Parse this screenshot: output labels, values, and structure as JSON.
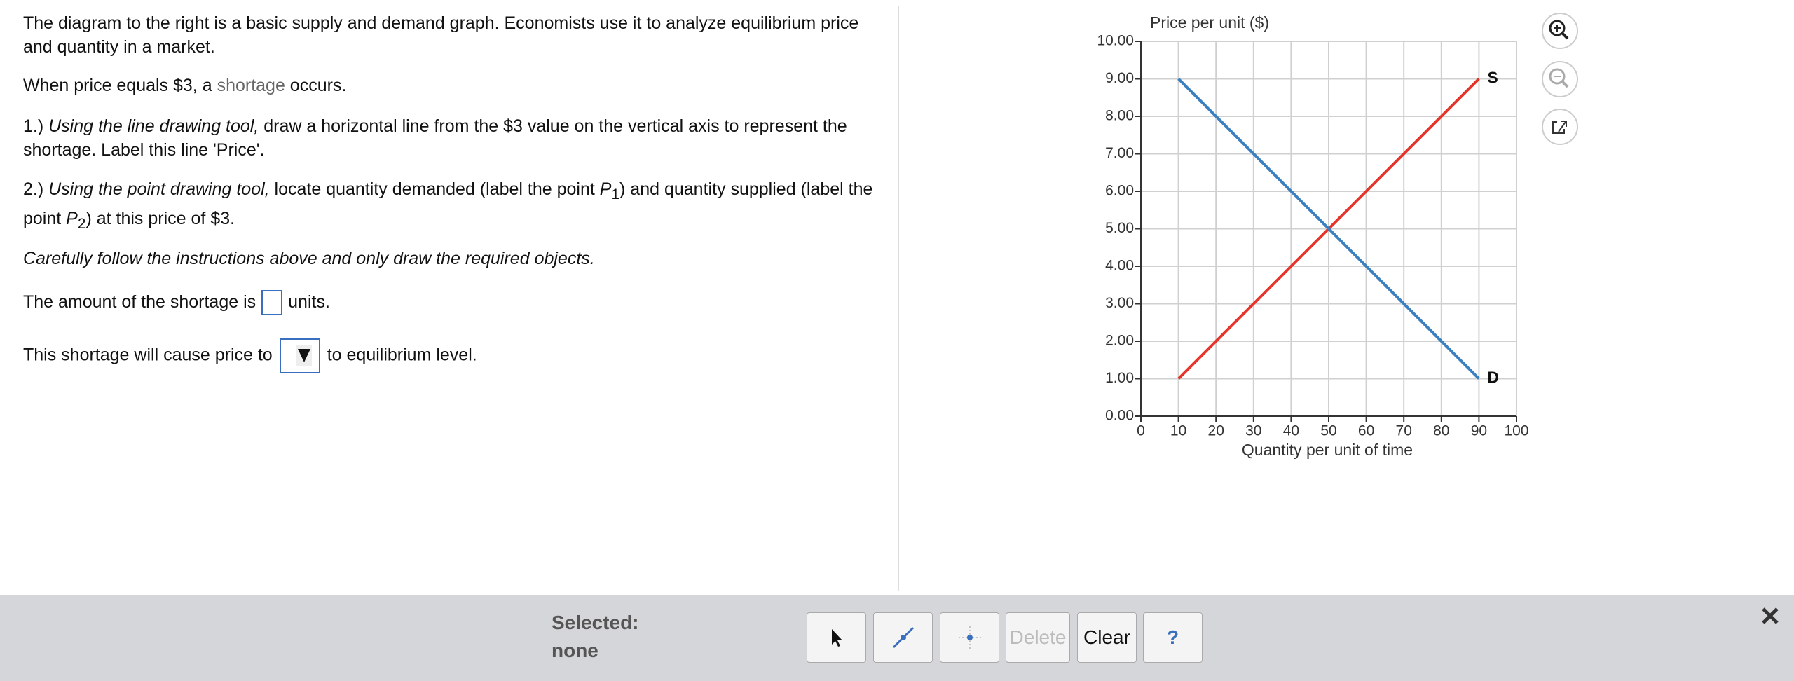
{
  "question": {
    "intro": "The diagram to the right is a basic supply and demand graph. Economists use it to analyze equilibrium price and quantity in a market.",
    "p2": [
      "When price equals $3, a ",
      "shortage",
      " occurs."
    ],
    "p3": [
      "1.) ",
      "Using the line drawing tool,",
      " draw a horizontal line from the $3 value on the vertical axis to represent the shortage. Label this line 'Price'."
    ],
    "p4": [
      "2.) ",
      "Using the point drawing tool,",
      " locate quantity demanded (label the point ",
      "P",
      "1",
      ") and quantity supplied (label the point ",
      "P",
      "2",
      ") at this price of $3."
    ],
    "p5": "Carefully follow the instructions above and only draw the required objects.",
    "p6": [
      "The amount of the shortage is",
      "units."
    ],
    "p7": [
      "This shortage will cause price to",
      "to equilibrium level."
    ]
  },
  "toolbar": {
    "selected_label": "Selected:",
    "selected_value": "none",
    "delete": "Delete",
    "clear": "Clear",
    "help": "?"
  },
  "chart_data": {
    "type": "line",
    "y_label": "Price per unit ($)",
    "x_label": "Quantity per unit of time",
    "xlim": [
      0,
      100
    ],
    "xticks": [
      0,
      10,
      20,
      30,
      40,
      50,
      60,
      70,
      80,
      90,
      100
    ],
    "ylim": [
      0,
      10
    ],
    "yticks": [
      {
        "value": 0,
        "label": "0.00"
      },
      {
        "value": 1,
        "label": "1.00"
      },
      {
        "value": 2,
        "label": "2.00"
      },
      {
        "value": 3,
        "label": "3.00"
      },
      {
        "value": 4,
        "label": "4.00"
      },
      {
        "value": 5,
        "label": "5.00"
      },
      {
        "value": 6,
        "label": "6.00"
      },
      {
        "value": 7,
        "label": "7.00"
      },
      {
        "value": 8,
        "label": "8.00"
      },
      {
        "value": 9,
        "label": "9.00"
      },
      {
        "value": 10,
        "label": "10.00"
      }
    ],
    "grid": true,
    "series": [
      {
        "name": "S",
        "color": "#e5342a",
        "x": [
          10,
          90
        ],
        "values": [
          1,
          9
        ]
      },
      {
        "name": "D",
        "color": "#3a7fc0",
        "x": [
          10,
          90
        ],
        "values": [
          9,
          1
        ]
      }
    ]
  }
}
